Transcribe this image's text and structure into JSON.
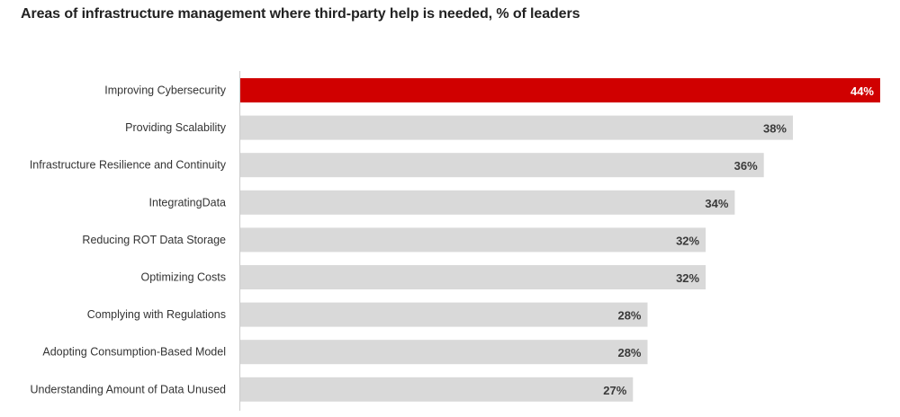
{
  "chart_data": {
    "type": "bar",
    "orientation": "horizontal",
    "title": "Areas of infrastructure management where third-party help is needed, % of leaders",
    "categories": [
      "Improving Cybersecurity",
      "Providing Scalability",
      "Infrastructure Resilience and Continuity",
      "IntegratingData",
      "Reducing ROT Data Storage",
      "Optimizing Costs",
      "Complying with Regulations",
      "Adopting Consumption-Based Model",
      "Understanding Amount of Data Unused"
    ],
    "values": [
      44,
      38,
      36,
      34,
      32,
      32,
      28,
      28,
      27
    ],
    "value_labels": [
      "44%",
      "38%",
      "36%",
      "34%",
      "32%",
      "32%",
      "28%",
      "28%",
      "27%"
    ],
    "highlight_index": 0,
    "xlim": [
      0,
      44
    ],
    "grid": false,
    "legend": "none",
    "colors": {
      "highlight": "#d00000",
      "bar": "#d9d9d9",
      "axis": "#cccccc",
      "highlight_text": "#ffffff",
      "value_text": "#3a3a3a"
    }
  }
}
